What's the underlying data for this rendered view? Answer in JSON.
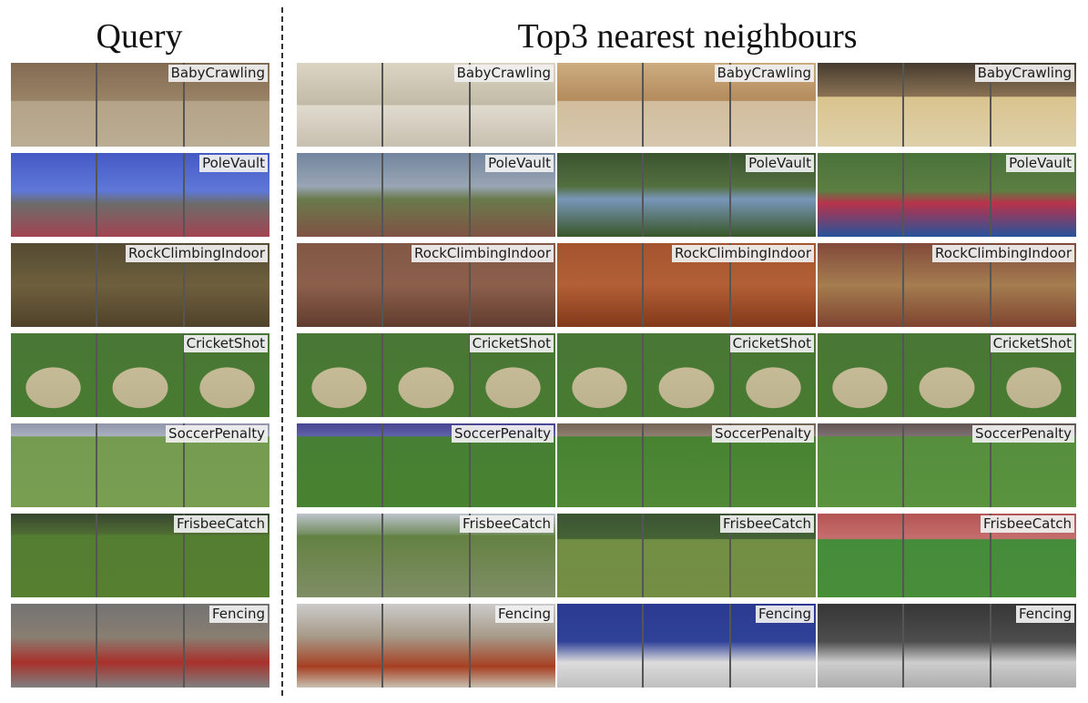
{
  "header": {
    "query_title": "Query",
    "neighbours_title": "Top3 nearest neighbours"
  },
  "rows": [
    {
      "label": "BabyCrawling"
    },
    {
      "label": "PoleVault"
    },
    {
      "label": "RockClimbingIndoor"
    },
    {
      "label": "CricketShot"
    },
    {
      "label": "SoccerPenalty"
    },
    {
      "label": "FrisbeeCatch"
    },
    {
      "label": "Fencing"
    }
  ]
}
